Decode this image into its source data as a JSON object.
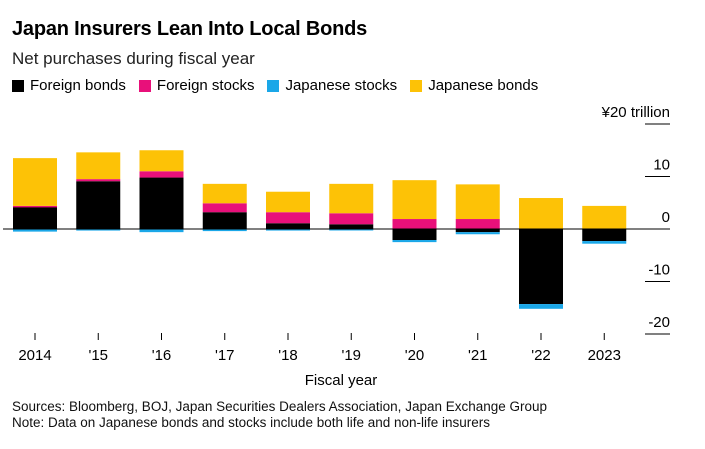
{
  "title": "Japan Insurers Lean Into Local Bonds",
  "subtitle": "Net purchases during fiscal year",
  "sources": "Sources: Bloomberg, BOJ, Japan Securities Dealers Association, Japan Exchange Group",
  "note": "Note: Data on Japanese bonds and stocks include both life and non-life insurers",
  "colors": {
    "foreign_bonds": "#000000",
    "foreign_stocks": "#e8107a",
    "japanese_stocks": "#1aa7e8",
    "japanese_bonds": "#fdc206"
  },
  "chart_data": {
    "type": "bar",
    "stacked": true,
    "title": "Japan Insurers Lean Into Local Bonds",
    "subtitle": "Net purchases during fiscal year",
    "xlabel": "Fiscal year",
    "ylabel": "",
    "y_unit_label": "¥20 trillion",
    "ylim": [
      -20,
      20
    ],
    "y_ticks": [
      {
        "value": 20,
        "label": "¥20 trillion"
      },
      {
        "value": 10,
        "label": "10"
      },
      {
        "value": 0,
        "label": "0"
      },
      {
        "value": -10,
        "label": "-10"
      },
      {
        "value": -20,
        "label": "-20"
      }
    ],
    "grid": true,
    "legend_position": "top-left",
    "categories": [
      "2014",
      "'15",
      "'16",
      "'17",
      "'18",
      "'19",
      "'20",
      "'21",
      "'22",
      "2023"
    ],
    "series": [
      {
        "name": "Foreign bonds",
        "color_key": "foreign_bonds",
        "values": [
          4.3,
          9.1,
          9.8,
          3.2,
          1.1,
          0.9,
          -2.1,
          -0.6,
          -14.3,
          -2.3
        ]
      },
      {
        "name": "Foreign stocks",
        "color_key": "foreign_stocks",
        "values": [
          0.1,
          0.4,
          1.2,
          1.7,
          2.1,
          2.1,
          1.9,
          1.9,
          0.0,
          0.0
        ]
      },
      {
        "name": "Japanese stocks",
        "color_key": "japanese_stocks",
        "values": [
          -0.5,
          -0.3,
          -0.6,
          -0.4,
          -0.3,
          -0.2,
          -0.4,
          -0.4,
          -0.9,
          -0.5
        ]
      },
      {
        "name": "Japanese bonds",
        "color_key": "japanese_bonds",
        "values": [
          9.1,
          5.1,
          4.0,
          3.7,
          3.9,
          5.6,
          7.4,
          6.6,
          5.9,
          4.4
        ]
      }
    ]
  }
}
